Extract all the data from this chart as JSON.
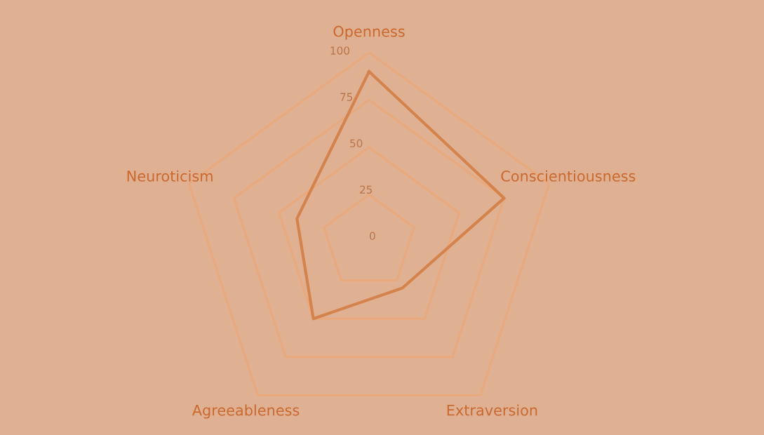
{
  "chart_data": {
    "type": "radar",
    "categories": [
      "Openness",
      "Conscientiousness",
      "Extraversion",
      "Agreeableness",
      "Neuroticism"
    ],
    "series": [
      {
        "color": "#d4834c",
        "values": [
          90,
          75,
          30,
          50,
          40
        ]
      }
    ],
    "ylim": [
      0,
      100
    ],
    "yticks": [
      0,
      25,
      50,
      75,
      100
    ],
    "grid": true,
    "marker": "none",
    "line_style": "solid"
  }
}
